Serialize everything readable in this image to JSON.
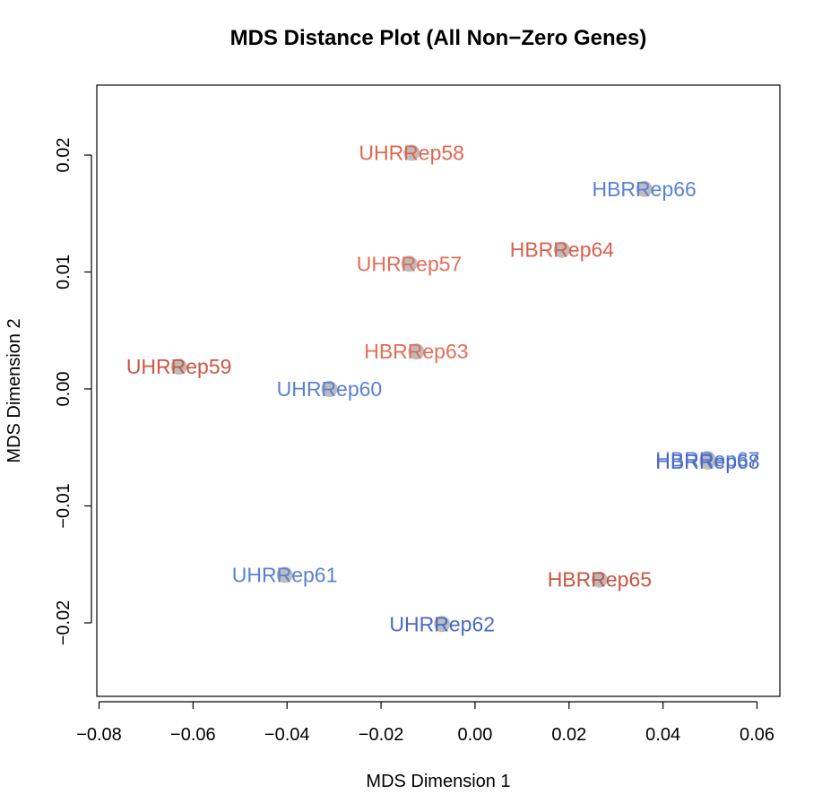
{
  "chart_data": {
    "type": "scatter",
    "title": "MDS Distance Plot (All Non−Zero Genes)",
    "xlabel": "MDS Dimension 1",
    "ylabel": "MDS Dimension 2",
    "xlim": [
      -0.08,
      0.065
    ],
    "ylim": [
      -0.0262,
      0.0262
    ],
    "x_ticks": [
      -0.08,
      -0.06,
      -0.04,
      -0.02,
      0.0,
      0.02,
      0.04,
      0.06
    ],
    "x_tick_labels": [
      "−0.08",
      "−0.06",
      "−0.04",
      "−0.02",
      "0.00",
      "0.02",
      "0.04",
      "0.06"
    ],
    "y_ticks": [
      -0.02,
      -0.01,
      0.0,
      0.01,
      0.02
    ],
    "y_tick_labels": [
      "−0.02",
      "−0.01",
      "0.00",
      "0.01",
      "0.02"
    ],
    "grid": false,
    "marker_color": "#bcbcbc",
    "points": [
      {
        "label": "UHRRep58",
        "x": -0.0135,
        "y": 0.0202,
        "color": "#e06650"
      },
      {
        "label": "HBRRep66",
        "x": 0.036,
        "y": 0.0171,
        "color": "#5b80d8"
      },
      {
        "label": "HBRRep64",
        "x": 0.0185,
        "y": 0.0119,
        "color": "#d9614d"
      },
      {
        "label": "UHRRep57",
        "x": -0.014,
        "y": 0.0107,
        "color": "#e46d58"
      },
      {
        "label": "HBRRep63",
        "x": -0.0125,
        "y": 0.0032,
        "color": "#e46d58"
      },
      {
        "label": "UHRRep59",
        "x": -0.063,
        "y": 0.0019,
        "color": "#cd5643"
      },
      {
        "label": "UHRRep60",
        "x": -0.031,
        "y": 0.0,
        "color": "#5b80d8"
      },
      {
        "label": "HBRRep67",
        "x": 0.0495,
        "y": -0.006,
        "color": "#5b80d8"
      },
      {
        "label": "HBRRep68",
        "x": 0.0495,
        "y": -0.0062,
        "color": "#4869c4"
      },
      {
        "label": "UHRRep61",
        "x": -0.0405,
        "y": -0.0159,
        "color": "#5b80d8"
      },
      {
        "label": "HBRRep65",
        "x": 0.0265,
        "y": -0.0163,
        "color": "#c75645"
      },
      {
        "label": "UHRRep62",
        "x": -0.007,
        "y": -0.0201,
        "color": "#4869c4"
      }
    ]
  }
}
